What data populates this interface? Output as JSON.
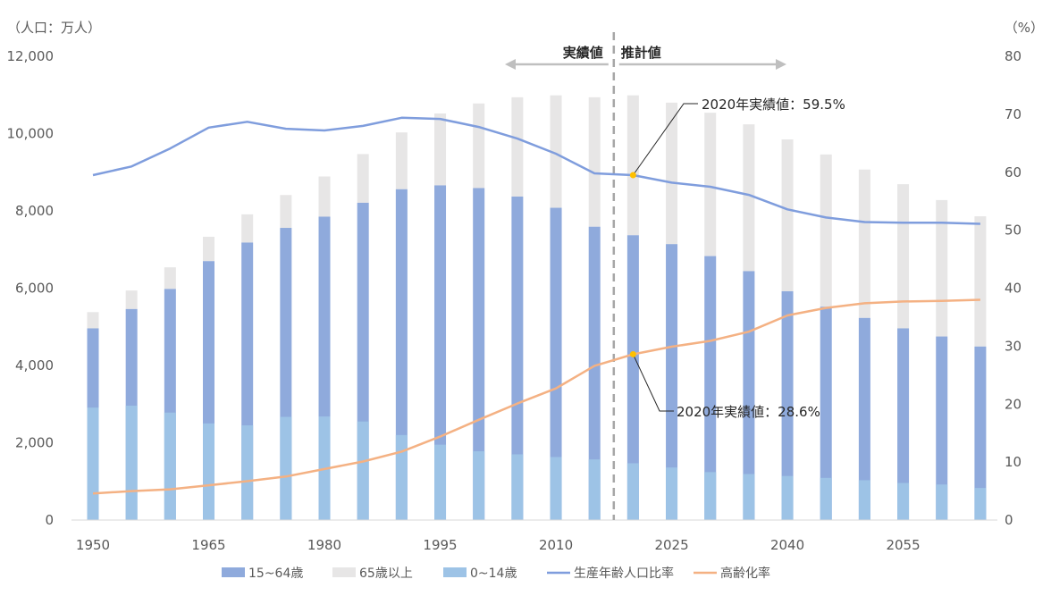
{
  "chart_data": {
    "type": "bar+line",
    "left_axis_label": "（人口：万人）",
    "right_axis_label": "（%）",
    "ylim_left": [
      0,
      12000
    ],
    "left_ticks": [
      "0",
      "2,000",
      "4,000",
      "6,000",
      "8,000",
      "10,000",
      "12,000"
    ],
    "ylim_right": [
      0,
      80
    ],
    "right_ticks": [
      "0",
      "10",
      "20",
      "30",
      "40",
      "50",
      "60",
      "70",
      "80"
    ],
    "x": [
      1950,
      1955,
      1960,
      1965,
      1970,
      1975,
      1980,
      1985,
      1990,
      1995,
      2000,
      2005,
      2010,
      2015,
      2020,
      2025,
      2030,
      2035,
      2040,
      2045,
      2050,
      2055,
      2060,
      2065
    ],
    "x_tick_labels": [
      "1950",
      "1965",
      "1980",
      "1995",
      "2010",
      "2025",
      "2040",
      "2055"
    ],
    "period_labels": {
      "actual": "実績値",
      "projected": "推計値",
      "split_between": [
        2015,
        2020
      ]
    },
    "series": [
      {
        "name": "15~64歳",
        "kind": "bar-stacked-base",
        "color": "#8faadc",
        "values": [
          4960,
          5460,
          5980,
          6700,
          7180,
          7560,
          7850,
          8210,
          8560,
          8660,
          8590,
          8370,
          8080,
          7590,
          7370,
          7140,
          6830,
          6440,
          5920,
          5520,
          5230,
          4960,
          4750,
          4490
        ]
      },
      {
        "name": "65歳以上",
        "kind": "bar-stacked-top",
        "color": "#e7e6e6",
        "values": [
          420,
          480,
          560,
          630,
          730,
          850,
          1040,
          1260,
          1470,
          1860,
          2190,
          2570,
          2910,
          3350,
          3620,
          3660,
          3710,
          3800,
          3930,
          3940,
          3840,
          3730,
          3530,
          3370
        ]
      },
      {
        "name": "0~14歳",
        "kind": "bar-overlay",
        "color": "#9dc3e6",
        "values": [
          2910,
          2960,
          2780,
          2500,
          2450,
          2670,
          2680,
          2550,
          2200,
          1950,
          1780,
          1700,
          1630,
          1570,
          1470,
          1360,
          1240,
          1190,
          1140,
          1090,
          1030,
          960,
          920,
          830
        ]
      },
      {
        "name": "生産年齢人口比率",
        "kind": "line",
        "axis": "right",
        "color": "#7f9ddd",
        "values": [
          59.5,
          61.0,
          64.1,
          67.7,
          68.7,
          67.5,
          67.2,
          68.0,
          69.4,
          69.2,
          67.8,
          65.8,
          63.2,
          59.8,
          59.5,
          58.2,
          57.5,
          56.1,
          53.6,
          52.2,
          51.4,
          51.3,
          51.3,
          51.1
        ]
      },
      {
        "name": "高齢化率",
        "kind": "line",
        "axis": "right",
        "color": "#f4b183",
        "values": [
          4.6,
          5.0,
          5.3,
          6.0,
          6.7,
          7.5,
          8.8,
          10.1,
          11.8,
          14.4,
          17.3,
          20.1,
          22.7,
          26.6,
          28.6,
          29.9,
          30.9,
          32.5,
          35.3,
          36.6,
          37.4,
          37.7,
          37.8,
          38.0
        ]
      }
    ],
    "annotations": [
      {
        "text": "2020年実績値：59.5%",
        "series": "生産年齢人口比率",
        "x": 2020,
        "y": 59.5
      },
      {
        "text": "2020年実績値：28.6%",
        "series": "高齢化率",
        "x": 2020,
        "y": 28.6
      }
    ],
    "marker_color": "#ffc000",
    "grid": false,
    "legend_position": "bottom"
  }
}
